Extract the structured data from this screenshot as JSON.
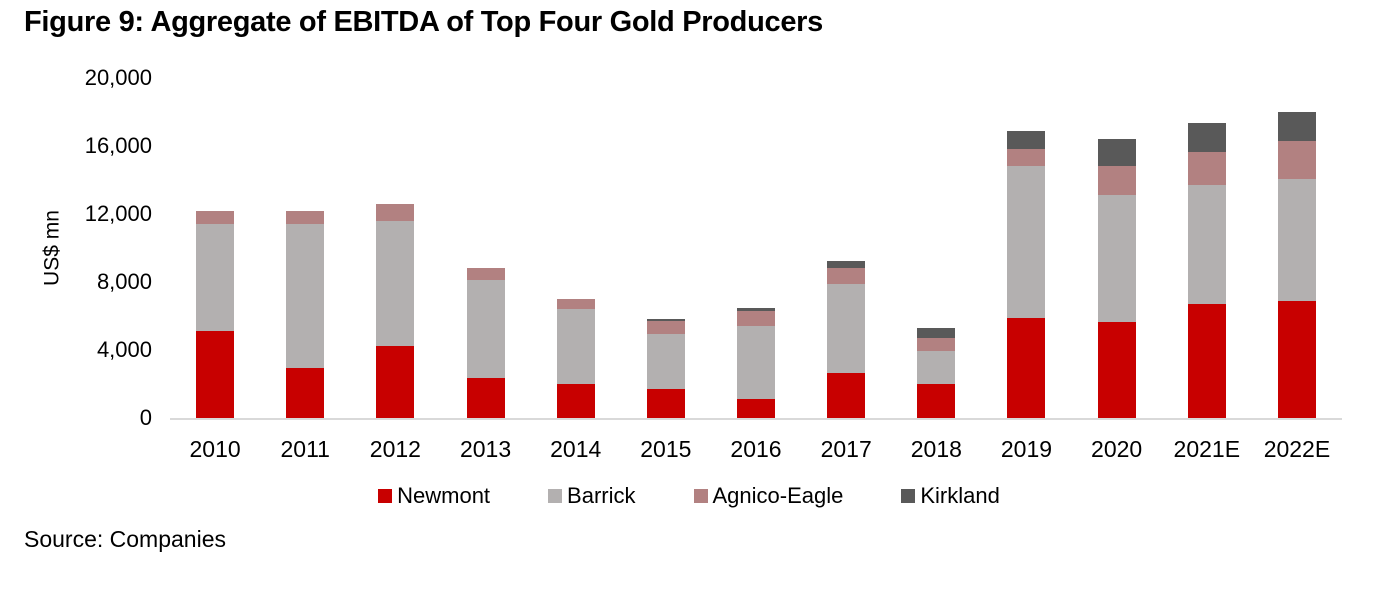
{
  "title": "Figure 9: Aggregate of EBITDA of Top Four Gold Producers",
  "source": "Source: Companies",
  "y_axis": {
    "label": "US$ mn",
    "ticks": [
      "20,000",
      "16,000",
      "12,000",
      "8,000",
      "4,000",
      "0"
    ]
  },
  "colors": {
    "newmont": "#c80000",
    "barrick": "#b3b0b0",
    "agnico_eagle": "#b28181",
    "kirkland": "#595959",
    "axis_line": "#d9d9d9"
  },
  "chart_data": {
    "type": "bar",
    "stacked": true,
    "title": "Figure 9: Aggregate of EBITDA of Top Four Gold Producers",
    "xlabel": "",
    "ylabel": "US$ mn",
    "ylim": [
      0,
      20000
    ],
    "grid": false,
    "legend_position": "bottom",
    "categories": [
      "2010",
      "2011",
      "2012",
      "2013",
      "2014",
      "2015",
      "2016",
      "2017",
      "2018",
      "2019",
      "2020",
      "2021E",
      "2022E"
    ],
    "series": [
      {
        "name": "Newmont",
        "color": "#c80000",
        "values": [
          5150,
          2950,
          4250,
          2350,
          2000,
          1700,
          1100,
          2650,
          2000,
          5900,
          5650,
          6700,
          6900
        ]
      },
      {
        "name": "Barrick",
        "color": "#b3b0b0",
        "values": [
          6250,
          8450,
          7350,
          5750,
          4400,
          3250,
          4300,
          5250,
          1950,
          8950,
          7500,
          7000,
          7150
        ]
      },
      {
        "name": "Agnico-Eagle",
        "color": "#b28181",
        "values": [
          750,
          800,
          1000,
          750,
          600,
          750,
          900,
          900,
          750,
          1000,
          1650,
          1950,
          2250
        ]
      },
      {
        "name": "Kirkland",
        "color": "#595959",
        "values": [
          0,
          0,
          0,
          0,
          0,
          150,
          200,
          450,
          600,
          1050,
          1600,
          1700,
          1700
        ]
      }
    ],
    "totals_approx": [
      12150,
      12200,
      12600,
      8850,
      7000,
      5850,
      6500,
      9250,
      5300,
      16900,
      16400,
      17350,
      18000
    ]
  }
}
